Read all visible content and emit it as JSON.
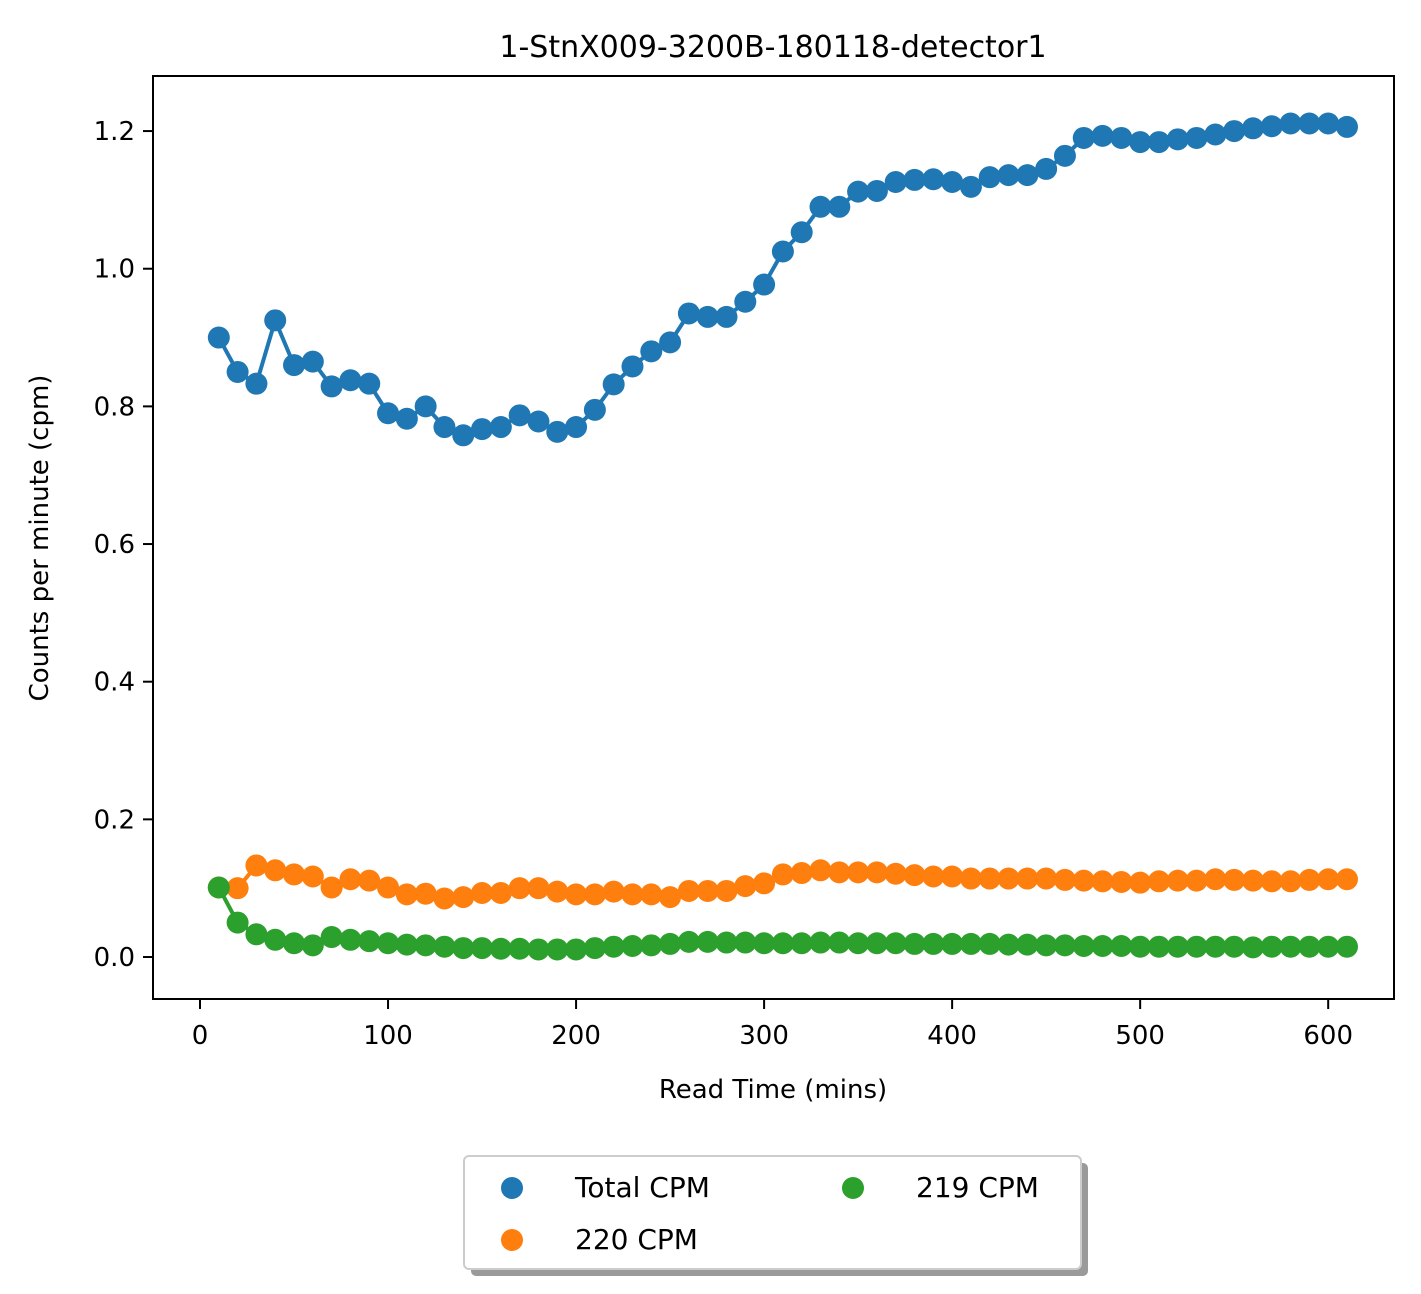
{
  "chart_data": {
    "type": "line",
    "title": "1-StnX009-3200B-180118-detector1",
    "xlabel": "Read Time (mins)",
    "ylabel": "Counts per minute (cpm)",
    "xlim": [
      -25,
      635
    ],
    "ylim": [
      -0.061,
      1.28
    ],
    "xticks": [
      0,
      100,
      200,
      300,
      400,
      500,
      600
    ],
    "yticks": [
      0.0,
      0.2,
      0.4,
      0.6,
      0.8,
      1.0,
      1.2
    ],
    "ytick_labels": [
      "0.0",
      "0.2",
      "0.4",
      "0.6",
      "0.8",
      "1.0",
      "1.2"
    ],
    "grid": false,
    "legend_placement": "below-center",
    "x": [
      10,
      20,
      30,
      40,
      50,
      60,
      70,
      80,
      90,
      100,
      110,
      120,
      130,
      140,
      150,
      160,
      170,
      180,
      190,
      200,
      210,
      220,
      230,
      240,
      250,
      260,
      270,
      280,
      290,
      300,
      310,
      320,
      330,
      340,
      350,
      360,
      370,
      380,
      390,
      400,
      410,
      420,
      430,
      440,
      450,
      460,
      470,
      480,
      490,
      500,
      510,
      520,
      530,
      540,
      550,
      560,
      570,
      580,
      590,
      600,
      610
    ],
    "series": [
      {
        "name": "Total CPM",
        "color": "#1f77b4",
        "values": [
          0.9,
          0.85,
          0.833,
          0.925,
          0.86,
          0.865,
          0.829,
          0.838,
          0.833,
          0.79,
          0.782,
          0.8,
          0.77,
          0.758,
          0.767,
          0.77,
          0.787,
          0.778,
          0.763,
          0.77,
          0.795,
          0.832,
          0.858,
          0.88,
          0.893,
          0.935,
          0.93,
          0.93,
          0.952,
          0.977,
          1.025,
          1.053,
          1.09,
          1.09,
          1.112,
          1.113,
          1.126,
          1.129,
          1.13,
          1.126,
          1.119,
          1.133,
          1.136,
          1.136,
          1.145,
          1.164,
          1.19,
          1.193,
          1.19,
          1.184,
          1.184,
          1.188,
          1.19,
          1.195,
          1.2,
          1.204,
          1.207,
          1.211,
          1.211,
          1.211,
          1.206
        ]
      },
      {
        "name": "220 CPM",
        "color": "#ff7f0e",
        "values": [
          0.101,
          0.1,
          0.133,
          0.126,
          0.12,
          0.117,
          0.101,
          0.113,
          0.111,
          0.101,
          0.091,
          0.092,
          0.085,
          0.087,
          0.093,
          0.093,
          0.1,
          0.1,
          0.095,
          0.091,
          0.091,
          0.095,
          0.091,
          0.091,
          0.087,
          0.096,
          0.096,
          0.096,
          0.103,
          0.107,
          0.12,
          0.122,
          0.126,
          0.123,
          0.123,
          0.123,
          0.121,
          0.119,
          0.117,
          0.117,
          0.114,
          0.114,
          0.114,
          0.114,
          0.114,
          0.112,
          0.111,
          0.11,
          0.109,
          0.108,
          0.11,
          0.111,
          0.111,
          0.113,
          0.112,
          0.111,
          0.11,
          0.11,
          0.112,
          0.113,
          0.113
        ]
      },
      {
        "name": "219 CPM",
        "color": "#2ca02c",
        "values": [
          0.101,
          0.05,
          0.033,
          0.025,
          0.02,
          0.017,
          0.029,
          0.025,
          0.023,
          0.02,
          0.018,
          0.017,
          0.015,
          0.013,
          0.013,
          0.012,
          0.012,
          0.011,
          0.011,
          0.011,
          0.013,
          0.015,
          0.016,
          0.017,
          0.019,
          0.022,
          0.022,
          0.021,
          0.021,
          0.02,
          0.02,
          0.02,
          0.021,
          0.021,
          0.02,
          0.02,
          0.02,
          0.019,
          0.019,
          0.019,
          0.019,
          0.019,
          0.018,
          0.018,
          0.017,
          0.017,
          0.016,
          0.016,
          0.016,
          0.015,
          0.015,
          0.015,
          0.015,
          0.015,
          0.015,
          0.014,
          0.015,
          0.015,
          0.015,
          0.015,
          0.015
        ]
      }
    ]
  }
}
